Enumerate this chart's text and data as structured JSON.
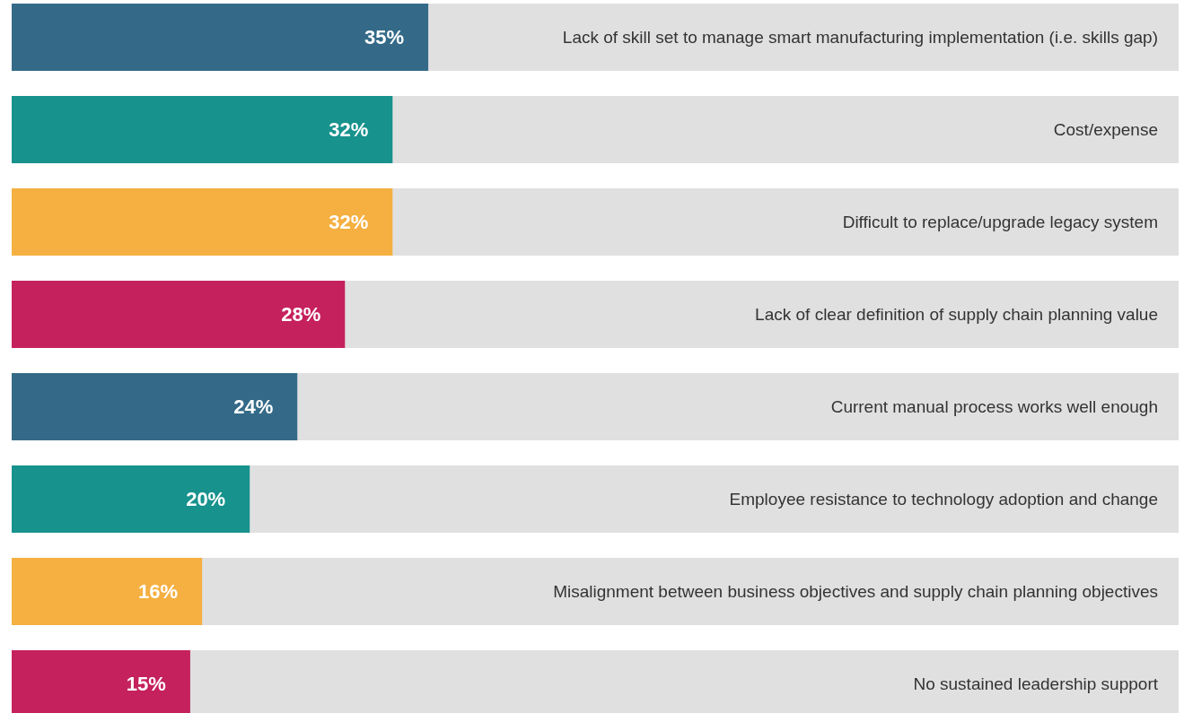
{
  "chart_data": {
    "type": "bar",
    "orientation": "horizontal",
    "categories": [
      "Lack of skill set to manage smart manufacturing implementation (i.e. skills gap)",
      "Cost/expense",
      "Difficult to replace/upgrade legacy system",
      "Lack of clear definition of supply chain planning value",
      "Current manual process works well enough",
      "Employee resistance to technology adoption and change",
      "Misalignment between business objectives and supply chain planning objectives",
      "No sustained leadership support"
    ],
    "values": [
      35,
      32,
      32,
      28,
      24,
      20,
      16,
      15
    ],
    "colors": [
      "#346a88",
      "#17928d",
      "#f5b041",
      "#c5215c",
      "#346a88",
      "#17928d",
      "#f5b041",
      "#c5215c"
    ],
    "value_labels": [
      "35%",
      "32%",
      "32%",
      "28%",
      "24%",
      "20%",
      "16%",
      "15%"
    ]
  }
}
